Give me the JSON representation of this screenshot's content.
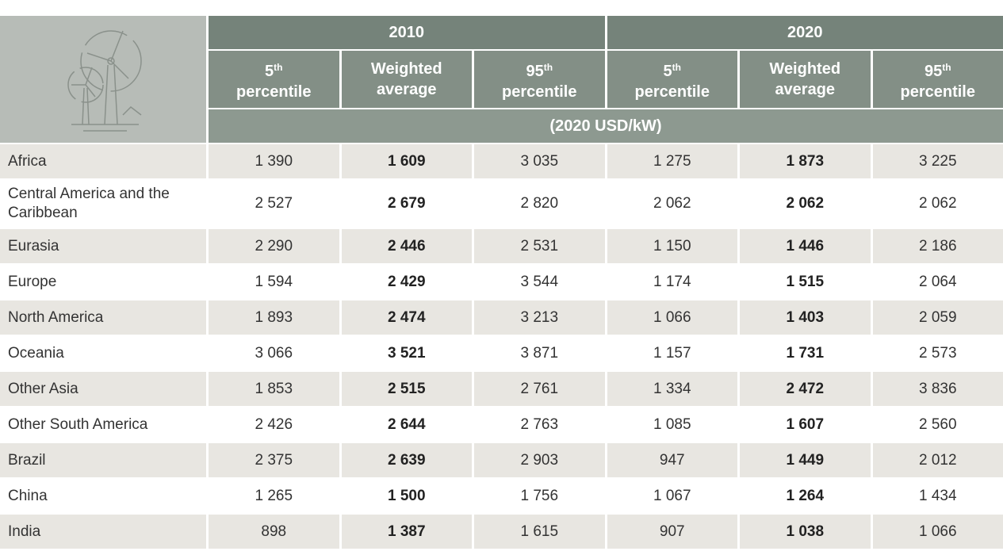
{
  "table": {
    "years": [
      "2010",
      "2020"
    ],
    "columns": [
      {
        "num": "5",
        "sup": "th",
        "text": "percentile"
      },
      {
        "num": "",
        "sup": "",
        "text": "Weighted average"
      },
      {
        "num": "95",
        "sup": "th",
        "text": "percentile"
      },
      {
        "num": "5",
        "sup": "th",
        "text": "percentile"
      },
      {
        "num": "",
        "sup": "",
        "text": "Weighted average"
      },
      {
        "num": "95",
        "sup": "th",
        "text": "percentile"
      }
    ],
    "units": "(2020 USD/kW)",
    "rows": [
      [
        "Africa",
        "1 390",
        "1 609",
        "3 035",
        "1 275",
        "1 873",
        "3 225"
      ],
      [
        "Central America and the Caribbean",
        "2 527",
        "2 679",
        "2 820",
        "2 062",
        "2 062",
        "2 062"
      ],
      [
        "Eurasia",
        "2 290",
        "2 446",
        "2 531",
        "1 150",
        "1 446",
        "2 186"
      ],
      [
        "Europe",
        "1 594",
        "2 429",
        "3 544",
        "1 174",
        "1 515",
        "2 064"
      ],
      [
        "North America",
        "1 893",
        "2 474",
        "3 213",
        "1 066",
        "1 403",
        "2 059"
      ],
      [
        "Oceania",
        "3 066",
        "3 521",
        "3 871",
        "1 157",
        "1 731",
        "2 573"
      ],
      [
        "Other Asia",
        "1 853",
        "2 515",
        "2 761",
        "1 334",
        "2 472",
        "3 836"
      ],
      [
        "Other South America",
        "2 426",
        "2 644",
        "2 763",
        "1 085",
        "1 607",
        "2 560"
      ],
      [
        "Brazil",
        "2 375",
        "2 639",
        "2 903",
        "947",
        "1 449",
        "2 012"
      ],
      [
        "China",
        "1 265",
        "1 500",
        "1 756",
        "1 067",
        "1 264",
        "1 434"
      ],
      [
        "India",
        "898",
        "1 387",
        "1 615",
        "907",
        "1 038",
        "1 066"
      ]
    ]
  }
}
